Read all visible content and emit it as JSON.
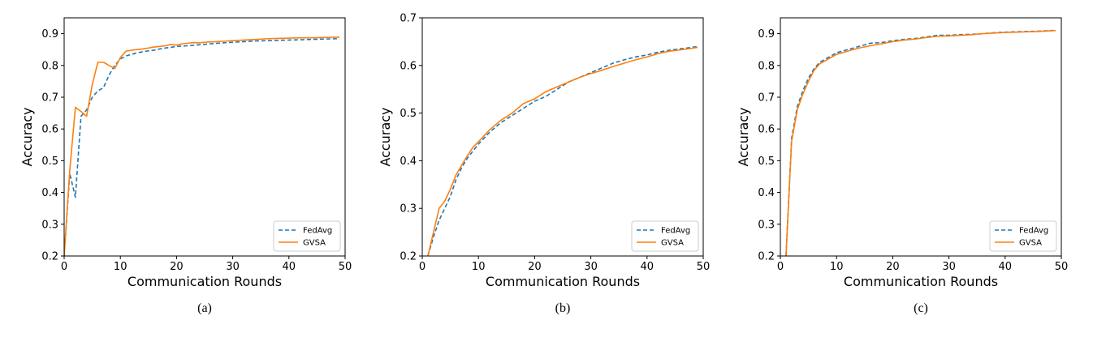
{
  "chart_data": [
    {
      "type": "line",
      "caption": "(a)",
      "xlabel": "Communication Rounds",
      "ylabel": "Accuracy",
      "xlim": [
        0,
        50
      ],
      "ylim": [
        0.2,
        0.95
      ],
      "xticks": [
        "0",
        "10",
        "20",
        "30",
        "40",
        "50"
      ],
      "yticks": [
        "0.2",
        "0.3",
        "0.4",
        "0.5",
        "0.6",
        "0.7",
        "0.8",
        "0.9"
      ],
      "grid": false,
      "legend": "lower-right",
      "series": [
        {
          "name": "FedAvg",
          "style": "dashed",
          "color": "#1f77b4",
          "x": [
            0,
            1,
            2,
            3,
            4,
            5,
            6,
            7,
            8,
            9,
            10,
            11,
            12,
            13,
            14,
            15,
            16,
            17,
            18,
            19,
            20,
            22,
            24,
            26,
            28,
            30,
            32,
            34,
            36,
            38,
            40,
            42,
            44,
            46,
            48,
            49
          ],
          "y": [
            0.2,
            0.46,
            0.385,
            0.64,
            0.66,
            0.7,
            0.72,
            0.73,
            0.77,
            0.8,
            0.82,
            0.83,
            0.835,
            0.84,
            0.843,
            0.846,
            0.848,
            0.852,
            0.855,
            0.857,
            0.86,
            0.862,
            0.865,
            0.868,
            0.871,
            0.873,
            0.875,
            0.877,
            0.878,
            0.879,
            0.88,
            0.881,
            0.882,
            0.883,
            0.884,
            0.884
          ]
        },
        {
          "name": "GVSA",
          "style": "solid",
          "color": "#ff7f0e",
          "x": [
            0,
            1,
            2,
            3,
            4,
            5,
            6,
            7,
            8,
            9,
            10,
            11,
            12,
            13,
            14,
            15,
            16,
            17,
            18,
            19,
            20,
            21,
            22,
            23,
            24,
            25,
            26,
            27,
            28,
            29,
            30,
            32,
            34,
            36,
            38,
            40,
            42,
            44,
            46,
            48,
            49
          ],
          "y": [
            0.2,
            0.47,
            0.668,
            0.655,
            0.64,
            0.74,
            0.81,
            0.81,
            0.8,
            0.79,
            0.825,
            0.845,
            0.848,
            0.85,
            0.852,
            0.855,
            0.858,
            0.86,
            0.862,
            0.866,
            0.864,
            0.868,
            0.87,
            0.872,
            0.871,
            0.873,
            0.874,
            0.875,
            0.876,
            0.877,
            0.878,
            0.88,
            0.882,
            0.884,
            0.885,
            0.886,
            0.887,
            0.887,
            0.888,
            0.889,
            0.889
          ]
        }
      ]
    },
    {
      "type": "line",
      "caption": "(b)",
      "xlabel": "Communication Rounds",
      "ylabel": "Accuracy",
      "xlim": [
        0,
        50
      ],
      "ylim": [
        0.2,
        0.7
      ],
      "xticks": [
        "0",
        "10",
        "20",
        "30",
        "40",
        "50"
      ],
      "yticks": [
        "0.2",
        "0.3",
        "0.4",
        "0.5",
        "0.6",
        "0.7"
      ],
      "grid": false,
      "legend": "lower-right",
      "series": [
        {
          "name": "FedAvg",
          "style": "dashed",
          "color": "#1f77b4",
          "x": [
            1,
            2,
            3,
            4,
            5,
            6,
            7,
            8,
            9,
            10,
            12,
            14,
            16,
            18,
            20,
            22,
            24,
            26,
            28,
            30,
            32,
            34,
            36,
            38,
            40,
            42,
            44,
            46,
            48,
            49
          ],
          "y": [
            0.2,
            0.24,
            0.275,
            0.3,
            0.325,
            0.36,
            0.385,
            0.405,
            0.42,
            0.435,
            0.46,
            0.48,
            0.495,
            0.51,
            0.525,
            0.535,
            0.55,
            0.565,
            0.575,
            0.585,
            0.595,
            0.605,
            0.612,
            0.618,
            0.622,
            0.628,
            0.632,
            0.635,
            0.638,
            0.64
          ]
        },
        {
          "name": "GVSA",
          "style": "solid",
          "color": "#ff7f0e",
          "x": [
            1,
            2,
            3,
            4,
            5,
            6,
            7,
            8,
            9,
            10,
            12,
            14,
            16,
            18,
            20,
            22,
            24,
            26,
            28,
            30,
            32,
            34,
            36,
            38,
            40,
            42,
            44,
            46,
            48,
            49
          ],
          "y": [
            0.2,
            0.25,
            0.3,
            0.315,
            0.34,
            0.37,
            0.39,
            0.41,
            0.428,
            0.44,
            0.465,
            0.485,
            0.5,
            0.52,
            0.53,
            0.545,
            0.555,
            0.565,
            0.575,
            0.583,
            0.59,
            0.598,
            0.605,
            0.612,
            0.618,
            0.625,
            0.63,
            0.633,
            0.636,
            0.638
          ]
        }
      ]
    },
    {
      "type": "line",
      "caption": "(c)",
      "xlabel": "Communication Rounds",
      "ylabel": "Accuracy",
      "xlim": [
        0,
        50
      ],
      "ylim": [
        0.2,
        0.95
      ],
      "xticks": [
        "0",
        "10",
        "20",
        "30",
        "40",
        "50"
      ],
      "yticks": [
        "0.2",
        "0.3",
        "0.4",
        "0.5",
        "0.6",
        "0.7",
        "0.8",
        "0.9"
      ],
      "grid": false,
      "legend": "lower-right",
      "series": [
        {
          "name": "FedAvg",
          "style": "dashed",
          "color": "#1f77b4",
          "x": [
            1,
            2,
            3,
            4,
            5,
            6,
            7,
            8,
            9,
            10,
            12,
            14,
            16,
            18,
            20,
            22,
            24,
            26,
            28,
            30,
            32,
            34,
            36,
            38,
            40,
            42,
            44,
            46,
            48,
            49
          ],
          "y": [
            0.2,
            0.57,
            0.67,
            0.72,
            0.76,
            0.79,
            0.81,
            0.82,
            0.83,
            0.84,
            0.85,
            0.86,
            0.87,
            0.872,
            0.878,
            0.882,
            0.885,
            0.89,
            0.895,
            0.895,
            0.897,
            0.898,
            0.9,
            0.903,
            0.905,
            0.906,
            0.907,
            0.908,
            0.91,
            0.91
          ]
        },
        {
          "name": "GVSA",
          "style": "solid",
          "color": "#ff7f0e",
          "x": [
            1,
            2,
            3,
            4,
            5,
            6,
            7,
            8,
            9,
            10,
            12,
            14,
            16,
            18,
            20,
            22,
            24,
            26,
            28,
            30,
            32,
            34,
            36,
            38,
            40,
            42,
            44,
            46,
            48,
            49
          ],
          "y": [
            0.2,
            0.56,
            0.66,
            0.71,
            0.75,
            0.785,
            0.805,
            0.815,
            0.825,
            0.835,
            0.845,
            0.855,
            0.862,
            0.868,
            0.875,
            0.88,
            0.883,
            0.888,
            0.892,
            0.893,
            0.895,
            0.897,
            0.9,
            0.902,
            0.904,
            0.905,
            0.906,
            0.907,
            0.909,
            0.91
          ]
        }
      ]
    }
  ]
}
